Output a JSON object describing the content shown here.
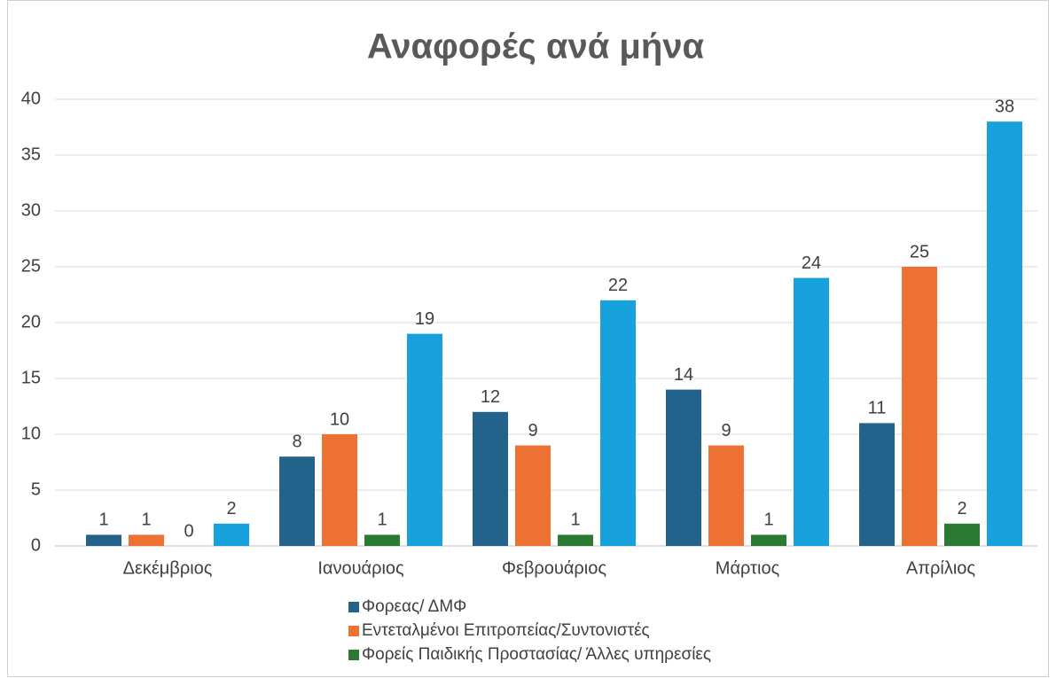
{
  "chart_data": {
    "type": "bar",
    "title": "Αναφορές ανά μήνα",
    "categories": [
      "Δεκέμβριος",
      "Ιανουάριος",
      "Φεβρουάριος",
      "Μάρτιος",
      "Απρίλιος"
    ],
    "series": [
      {
        "name": "Φορεας/ ΔΜΦ",
        "color": "#23628a",
        "values": [
          1,
          8,
          12,
          14,
          11
        ]
      },
      {
        "name": "Εντεταλμένοι Επιτροπείας/Συντονιστές",
        "color": "#ec7133",
        "values": [
          1,
          10,
          9,
          9,
          25
        ]
      },
      {
        "name": "Φορείς Παιδικής Προστασίας/ Άλλες υπηρεσίες",
        "color": "#2b7a33",
        "values": [
          0,
          1,
          1,
          1,
          2
        ]
      },
      {
        "color": "#17a2de",
        "values": [
          2,
          19,
          22,
          24,
          38
        ]
      }
    ],
    "ylim": [
      0,
      40
    ],
    "yticks": [
      0,
      5,
      10,
      15,
      20,
      25,
      30,
      35,
      40
    ],
    "grid": true
  }
}
